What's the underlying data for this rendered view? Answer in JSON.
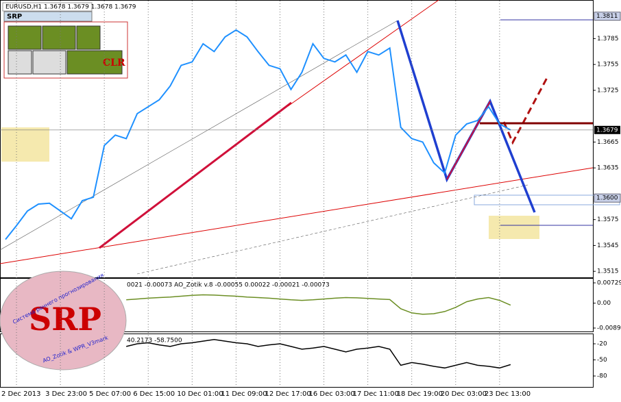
{
  "chart_data": [
    {
      "type": "line",
      "title": "EURUSD,H1 1.3678 1.3679 1.3678 1.3679",
      "color": "#1e90ff",
      "categories": [
        null,
        "2 Dec 2013",
        null,
        null,
        null,
        "3 Dec 23:00",
        null,
        null,
        null,
        "5 Dec 07:00",
        null,
        null,
        null,
        "6 Dec 15:00",
        null,
        null,
        null,
        "10 Dec 01:00",
        null,
        null,
        null,
        "11 Dec 09:00",
        null,
        null,
        null,
        "12 Dec 17:00",
        null,
        null,
        null,
        "16 Dec 03:00",
        null,
        null,
        null,
        "17 Dec 11:00",
        null,
        null,
        null,
        "18 Dec 19:00",
        null,
        null,
        null,
        "20 Dec 03:00",
        null,
        null,
        null,
        "23 Dec 13:00",
        null,
        null,
        null,
        null,
        null,
        null,
        null,
        null
      ],
      "values": [
        1.3552,
        1.3568,
        1.3585,
        1.3593,
        1.3594,
        1.3585,
        1.3576,
        1.3597,
        1.3601,
        1.3661,
        1.3673,
        1.3669,
        1.3698,
        1.3706,
        1.3714,
        1.373,
        1.3754,
        1.3758,
        1.3779,
        1.377,
        1.3787,
        1.3795,
        1.3787,
        1.377,
        1.3754,
        1.375,
        1.3726,
        1.3746,
        1.3779,
        1.3762,
        1.3758,
        1.3766,
        1.3746,
        1.377,
        1.3766,
        1.3774,
        1.3682,
        1.3669,
        1.3665,
        1.3641,
        1.3629,
        1.3673,
        1.3686,
        1.369,
        1.3706,
        1.3686,
        1.3679,
        null,
        null,
        null,
        null,
        null,
        null,
        null
      ],
      "ylim": [
        1.3508,
        1.3829
      ],
      "yticks": [
        1.3515,
        1.3545,
        1.3575,
        1.3635,
        1.3665,
        1.3725,
        1.3755,
        1.3785
      ],
      "last_price": 1.3679,
      "levels": [
        1.3811,
        {
          "value": 1.36,
          "label": "1.3600"
        }
      ]
    },
    {
      "type": "line",
      "title": "0021 -0.00073 AO_Zotik v.8 -0.00055 0.00022 -0.00021 -0.00073",
      "color": "#6b8e23",
      "values": [
        null,
        null,
        null,
        null,
        null,
        null,
        null,
        null,
        null,
        null,
        null,
        0.0012,
        0.0015,
        0.0018,
        0.002,
        0.0022,
        0.0025,
        0.0028,
        0.003,
        0.0029,
        0.0027,
        0.0025,
        0.0022,
        0.002,
        0.0018,
        0.0015,
        0.0012,
        0.001,
        0.0012,
        0.0015,
        0.0018,
        0.002,
        0.0019,
        0.0017,
        0.0015,
        0.0013,
        -0.002,
        -0.0035,
        -0.004,
        -0.0038,
        -0.003,
        -0.0015,
        0.0005,
        0.0015,
        0.002,
        0.001,
        -0.00073,
        null,
        null,
        null,
        null,
        null,
        null,
        null
      ],
      "ylim": [
        -0.01016,
        0.00877
      ],
      "yticks": [
        -0.00893,
        {
          "value": 0,
          "label": "0.00"
        },
        0.00729
      ]
    },
    {
      "type": "line",
      "title": "40.2173 -58.7500",
      "color": "#000000",
      "values": [
        null,
        null,
        null,
        null,
        null,
        null,
        null,
        null,
        null,
        null,
        null,
        -25,
        -20,
        -18,
        -22,
        -25,
        -20,
        -18,
        -15,
        -12,
        -15,
        -18,
        -20,
        -25,
        -22,
        -20,
        -25,
        -30,
        -28,
        -25,
        -30,
        -35,
        -30,
        -28,
        -25,
        -30,
        -60,
        -55,
        -58,
        -62,
        -65,
        -60,
        -55,
        -60,
        -62,
        -65,
        -58.75,
        null,
        null,
        null,
        null,
        null,
        null,
        null
      ],
      "ylim": [
        -100.4,
        -2.1
      ],
      "yticks": [
        -80,
        -50,
        -20
      ]
    }
  ],
  "toolbar": {
    "panel": "SRP",
    "clear_button": "CLR"
  },
  "logo": {
    "letters": "SRP",
    "caption_top": "Система раннего прогнозирования",
    "caption_bottom": "AO_Zotik & WPR_V3mark"
  }
}
